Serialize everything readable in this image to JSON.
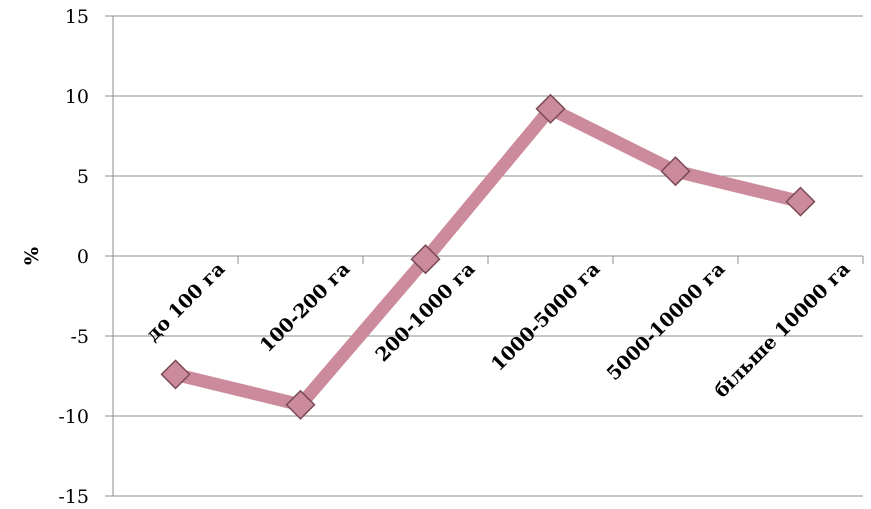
{
  "chart_data": {
    "type": "line",
    "categories": [
      "до 100 га",
      "100-200 га",
      "200-1000 га",
      "1000-5000 га",
      "5000-10000 га",
      "більше 10000 га"
    ],
    "series": [
      {
        "values": [
          -7.4,
          -9.3,
          -0.2,
          9.2,
          5.3,
          3.4
        ]
      }
    ],
    "ylabel": "%",
    "ylim": [
      -15,
      15
    ],
    "yticks": [
      "15",
      "10",
      "5",
      "0",
      "-5",
      "-10",
      "-15"
    ],
    "grid": true,
    "colors": {
      "line": "#cc8b9c",
      "marker_fill": "#cc8b9c",
      "marker_stroke": "#7a4a57"
    }
  }
}
